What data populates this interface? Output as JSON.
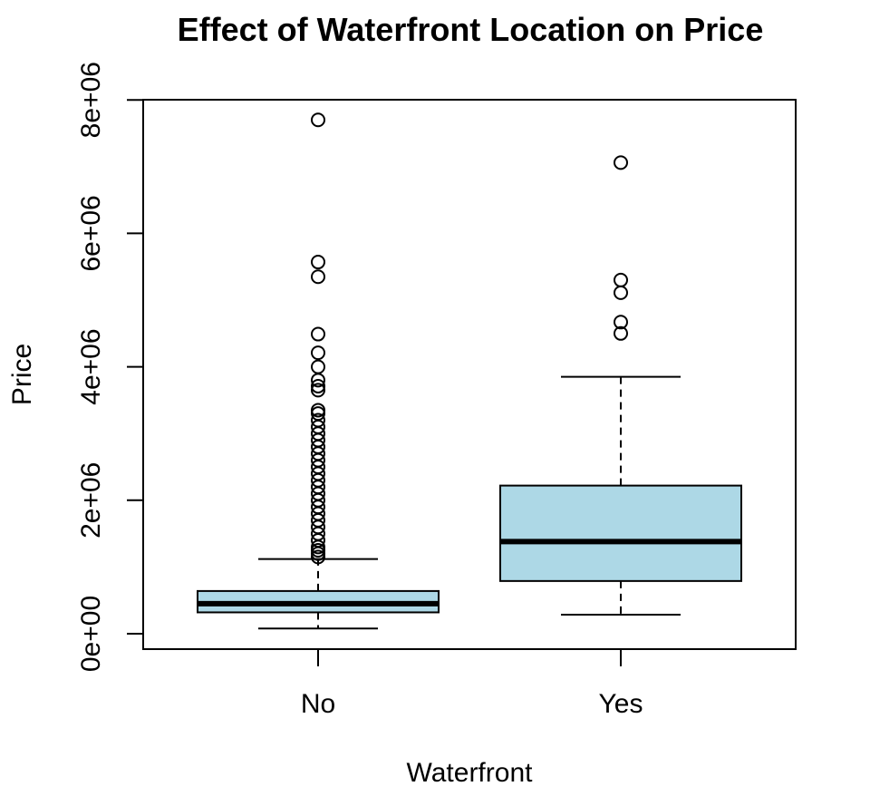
{
  "chart_data": {
    "type": "box",
    "title": "Effect of Waterfront Location on Price",
    "xlabel": "Waterfront",
    "ylabel": "Price",
    "ylim": [
      -220000,
      8000000
    ],
    "y_ticks": [
      {
        "value": 0,
        "label": "0e+00"
      },
      {
        "value": 2000000,
        "label": "2e+06"
      },
      {
        "value": 4000000,
        "label": "4e+06"
      },
      {
        "value": 6000000,
        "label": "6e+06"
      },
      {
        "value": 8000000,
        "label": "8e+06"
      }
    ],
    "categories": [
      "No",
      "Yes"
    ],
    "box_color": "#add8e6",
    "boxes": [
      {
        "name": "No",
        "whisker_low": 78000,
        "q1": 320000,
        "median": 450000,
        "q3": 640000,
        "whisker_high": 1120000,
        "outliers": [
          7700000,
          5570000,
          5350000,
          4490000,
          4210000,
          4000000,
          3800000,
          3710000,
          3650000,
          3350000,
          3300000,
          3200000,
          3100000,
          3000000,
          2900000,
          2800000,
          2700000,
          2600000,
          2500000,
          2400000,
          2300000,
          2200000,
          2100000,
          2000000,
          1900000,
          1800000,
          1700000,
          1600000,
          1500000,
          1400000,
          1300000,
          1250000,
          1200000,
          1150000
        ]
      },
      {
        "name": "Yes",
        "whisker_low": 285000,
        "q1": 790000,
        "median": 1380000,
        "q3": 2220000,
        "whisker_high": 3850000,
        "outliers": [
          7060000,
          5300000,
          5110000,
          4670000,
          4500000
        ]
      }
    ]
  }
}
